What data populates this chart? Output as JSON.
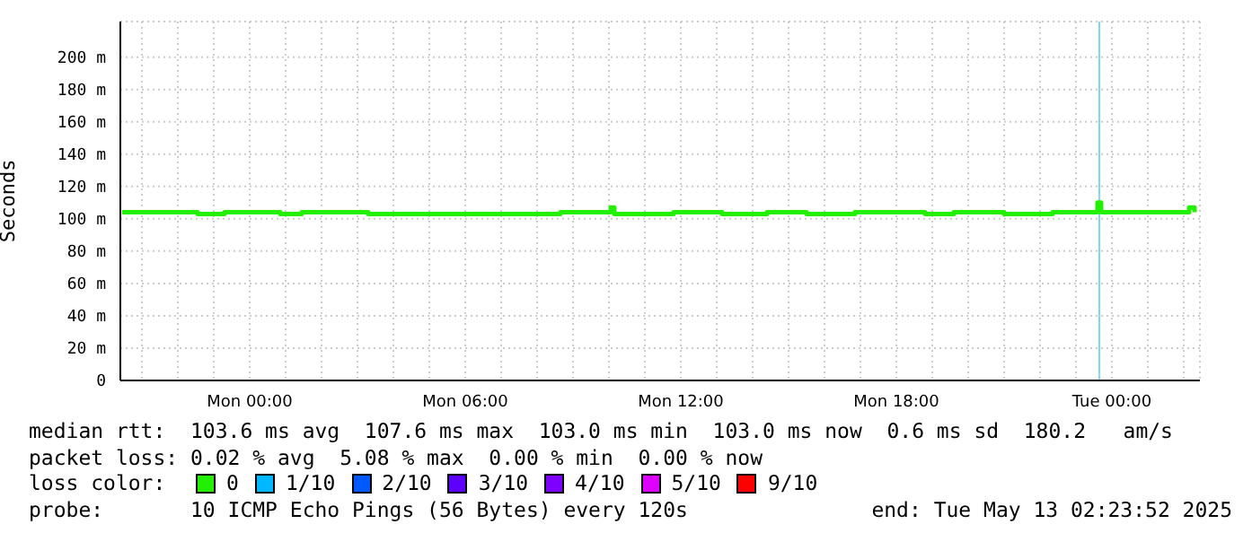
{
  "chart_data": {
    "type": "step",
    "ylabel": "Seconds",
    "x": [
      "2025-05-11T20:27",
      "2025-05-11T22:33",
      "2025-05-11T23:18",
      "2025-05-12T00:51",
      "2025-05-12T01:27",
      "2025-05-12T03:18",
      "2025-05-12T08:39",
      "2025-05-12T10:03",
      "2025-05-12T10:09",
      "2025-05-12T11:48",
      "2025-05-12T13:09",
      "2025-05-12T14:24",
      "2025-05-12T15:30",
      "2025-05-12T16:51",
      "2025-05-12T18:48",
      "2025-05-12T19:36",
      "2025-05-12T21:00",
      "2025-05-12T22:21",
      "2025-05-12T23:36",
      "2025-05-12T23:42",
      "2025-05-13T02:09",
      "2025-05-13T02:18"
    ],
    "series": [
      {
        "name": "0",
        "color": "#22f000",
        "values": [
          104,
          103,
          104,
          103,
          104,
          103,
          104,
          107,
          103,
          104,
          103,
          104,
          103,
          104,
          103,
          104,
          103,
          104,
          110,
          104,
          107,
          104
        ]
      },
      {
        "name": "1/10",
        "color": "#00b8ff",
        "values": [
          null,
          null,
          null,
          null,
          null,
          null,
          null,
          null,
          null,
          null,
          null,
          null,
          null,
          null,
          null,
          null,
          null,
          null,
          null,
          null,
          null,
          null
        ]
      },
      {
        "name": "2/10",
        "color": "#0059ff",
        "values": [
          null,
          null,
          null,
          null,
          null,
          null,
          null,
          null,
          null,
          null,
          null,
          null,
          null,
          null,
          null,
          null,
          null,
          null,
          null,
          null,
          null,
          null
        ]
      },
      {
        "name": "3/10",
        "color": "#5e00ff",
        "values": [
          null,
          null,
          null,
          null,
          null,
          null,
          null,
          null,
          null,
          null,
          null,
          null,
          null,
          null,
          null,
          null,
          null,
          null,
          null,
          null,
          null,
          null
        ]
      },
      {
        "name": "4/10",
        "color": "#7e00ff",
        "values": [
          null,
          null,
          null,
          null,
          null,
          null,
          null,
          null,
          null,
          null,
          null,
          null,
          null,
          null,
          null,
          null,
          null,
          null,
          null,
          null,
          null,
          null
        ]
      },
      {
        "name": "5/10",
        "color": "#dd00ff",
        "values": [
          null,
          null,
          null,
          null,
          null,
          null,
          null,
          null,
          null,
          null,
          null,
          null,
          null,
          null,
          null,
          null,
          null,
          null,
          null,
          null,
          null,
          null
        ]
      },
      {
        "name": "9/10",
        "color": "#ff0000",
        "values": [
          null,
          null,
          null,
          null,
          null,
          null,
          null,
          null,
          null,
          null,
          null,
          null,
          null,
          null,
          null,
          null,
          null,
          null,
          null,
          null,
          null,
          null
        ]
      }
    ],
    "legend_title": "loss color:",
    "legend": "bottom",
    "xlim": [
      "2025-05-11T20:24",
      "2025-05-13T02:27"
    ],
    "xticks": [
      {
        "value": "2025-05-11T21:00",
        "label": null
      },
      {
        "value": "2025-05-11T22:00",
        "label": null
      },
      {
        "value": "2025-05-11T23:00",
        "label": null
      },
      {
        "value": "2025-05-12T00:00",
        "label": "Mon 00:00"
      },
      {
        "value": "2025-05-12T01:00",
        "label": null
      },
      {
        "value": "2025-05-12T02:00",
        "label": null
      },
      {
        "value": "2025-05-12T03:00",
        "label": null
      },
      {
        "value": "2025-05-12T04:00",
        "label": null
      },
      {
        "value": "2025-05-12T05:00",
        "label": null
      },
      {
        "value": "2025-05-12T06:00",
        "label": "Mon 06:00"
      },
      {
        "value": "2025-05-12T07:00",
        "label": null
      },
      {
        "value": "2025-05-12T08:00",
        "label": null
      },
      {
        "value": "2025-05-12T09:00",
        "label": null
      },
      {
        "value": "2025-05-12T10:00",
        "label": null
      },
      {
        "value": "2025-05-12T11:00",
        "label": null
      },
      {
        "value": "2025-05-12T12:00",
        "label": "Mon 12:00"
      },
      {
        "value": "2025-05-12T13:00",
        "label": null
      },
      {
        "value": "2025-05-12T14:00",
        "label": null
      },
      {
        "value": "2025-05-12T15:00",
        "label": null
      },
      {
        "value": "2025-05-12T16:00",
        "label": null
      },
      {
        "value": "2025-05-12T17:00",
        "label": null
      },
      {
        "value": "2025-05-12T18:00",
        "label": "Mon 18:00"
      },
      {
        "value": "2025-05-12T19:00",
        "label": null
      },
      {
        "value": "2025-05-12T20:00",
        "label": null
      },
      {
        "value": "2025-05-12T21:00",
        "label": null
      },
      {
        "value": "2025-05-12T22:00",
        "label": null
      },
      {
        "value": "2025-05-12T23:00",
        "label": null
      },
      {
        "value": "2025-05-13T00:00",
        "label": "Tue 00:00"
      },
      {
        "value": "2025-05-13T01:00",
        "label": null
      },
      {
        "value": "2025-05-13T02:00",
        "label": null
      }
    ],
    "ylim": [
      0,
      222
    ],
    "yticks": [
      0,
      {
        "value": 20,
        "label": "20 m"
      },
      {
        "value": 40,
        "label": "40 m"
      },
      {
        "value": 60,
        "label": "60 m"
      },
      {
        "value": 80,
        "label": "80 m"
      },
      {
        "value": 100,
        "label": "100 m"
      },
      {
        "value": 120,
        "label": "120 m"
      },
      {
        "value": 140,
        "label": "140 m"
      },
      {
        "value": 160,
        "label": "160 m"
      },
      {
        "value": 180,
        "label": "180 m"
      },
      {
        "value": 200,
        "label": "200 m"
      }
    ],
    "grid": true,
    "ref_lines": [
      {
        "axis": "x",
        "value": "2025-05-12T23:39",
        "color": "#80d8ff"
      }
    ],
    "annotations": [
      "median rtt:  103.6 ms avg  107.6 ms max  103.0 ms min  103.0 ms now  0.6 ms sd  180.2   am/s",
      "packet loss: 0.02 % avg  5.08 % max  0.00 % min  0.00 % now",
      "probe:       10 ICMP Echo Pings (56 Bytes) every 120s",
      "end: Tue May 13 02:23:52 2025"
    ]
  }
}
